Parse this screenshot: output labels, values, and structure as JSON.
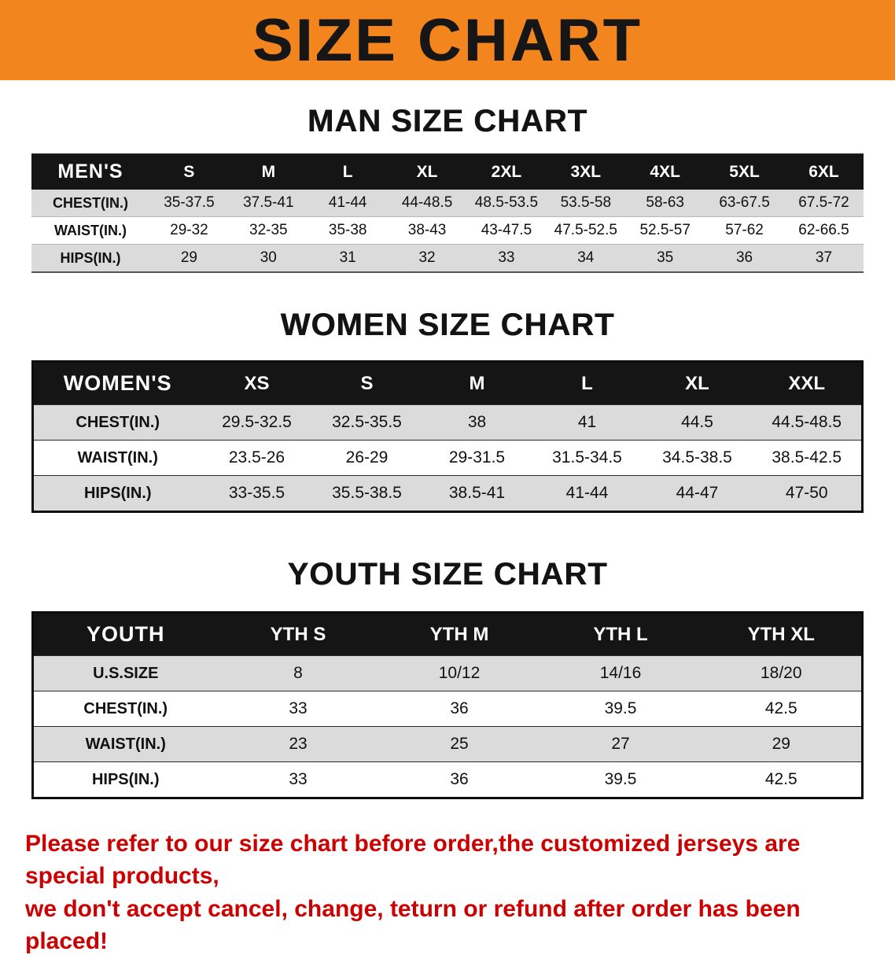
{
  "colors": {
    "banner_bg": "#F2851D",
    "header_bg": "#151515",
    "stripe": "#DBDBDB",
    "footer_text": "#CC0000"
  },
  "banner": {
    "title": "SIZE CHART"
  },
  "sections": [
    {
      "heading": "MAN SIZE CHART",
      "table": {
        "name": "mens",
        "header": [
          "MEN'S",
          "S",
          "M",
          "L",
          "XL",
          "2XL",
          "3XL",
          "4XL",
          "5XL",
          "6XL"
        ],
        "rows": [
          [
            "CHEST(IN.)",
            "35-37.5",
            "37.5-41",
            "41-44",
            "44-48.5",
            "48.5-53.5",
            "53.5-58",
            "58-63",
            "63-67.5",
            "67.5-72"
          ],
          [
            "WAIST(IN.)",
            "29-32",
            "32-35",
            "35-38",
            "38-43",
            "43-47.5",
            "47.5-52.5",
            "52.5-57",
            "57-62",
            "62-66.5"
          ],
          [
            "HIPS(IN.)",
            "29",
            "30",
            "31",
            "32",
            "33",
            "34",
            "35",
            "36",
            "37"
          ]
        ]
      }
    },
    {
      "heading": "WOMEN SIZE CHART",
      "table": {
        "name": "womens",
        "header": [
          "WOMEN'S",
          "XS",
          "S",
          "M",
          "L",
          "XL",
          "XXL"
        ],
        "rows": [
          [
            "CHEST(IN.)",
            "29.5-32.5",
            "32.5-35.5",
            "38",
            "41",
            "44.5",
            "44.5-48.5"
          ],
          [
            "WAIST(IN.)",
            "23.5-26",
            "26-29",
            "29-31.5",
            "31.5-34.5",
            "34.5-38.5",
            "38.5-42.5"
          ],
          [
            "HIPS(IN.)",
            "33-35.5",
            "35.5-38.5",
            "38.5-41",
            "41-44",
            "44-47",
            "47-50"
          ]
        ]
      }
    },
    {
      "heading": "YOUTH SIZE CHART",
      "table": {
        "name": "youth",
        "header": [
          "YOUTH",
          "YTH S",
          "YTH M",
          "YTH L",
          "YTH XL"
        ],
        "rows": [
          [
            "U.S.SIZE",
            "8",
            "10/12",
            "14/16",
            "18/20"
          ],
          [
            "CHEST(IN.)",
            "33",
            "36",
            "39.5",
            "42.5"
          ],
          [
            "WAIST(IN.)",
            "23",
            "25",
            "27",
            "29"
          ],
          [
            "HIPS(IN.)",
            "33",
            "36",
            "39.5",
            "42.5"
          ]
        ]
      }
    }
  ],
  "footer": {
    "line1": "Please refer to our size chart before order,the customized jerseys are special products,",
    "line2": "we don't accept cancel, change, teturn or refund after order has been placed!"
  }
}
